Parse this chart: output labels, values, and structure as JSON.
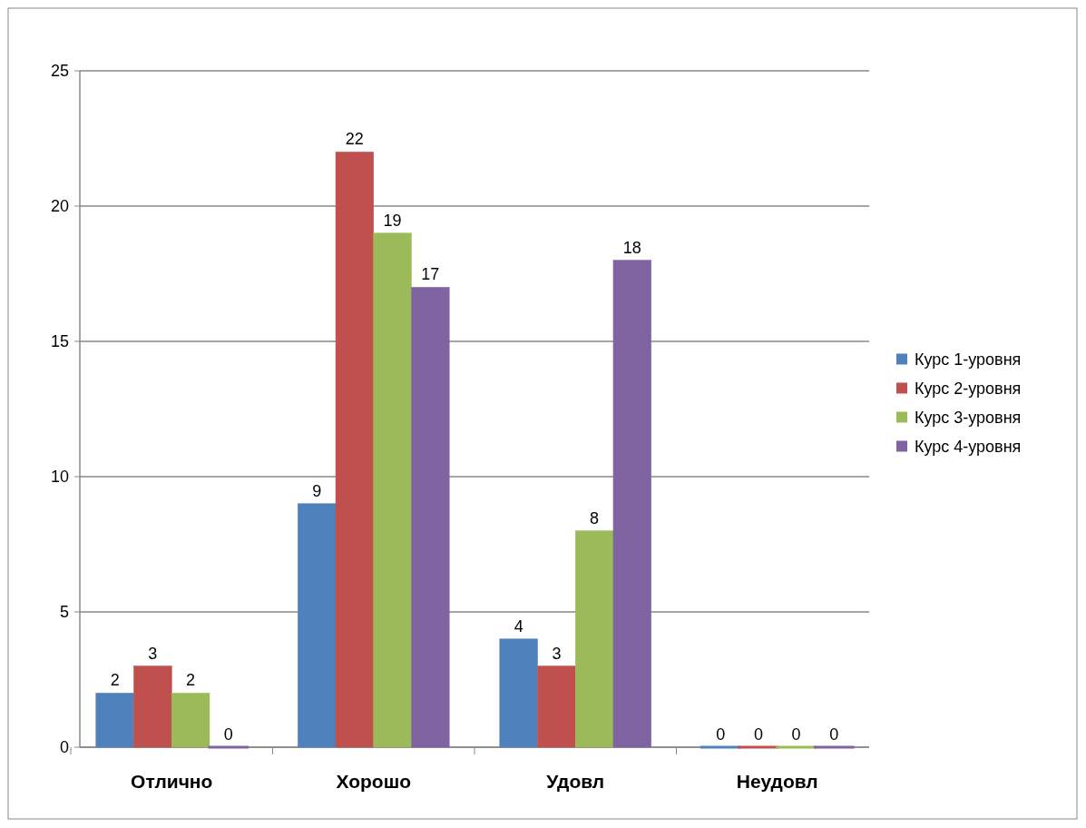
{
  "chart_data": {
    "type": "bar",
    "categories": [
      "Отлично",
      "Хорошо",
      "Удовл",
      "Неудовл"
    ],
    "series": [
      {
        "name": "Курс 1-уровня",
        "color": "#4f81bd",
        "values": [
          2,
          9,
          4,
          0
        ]
      },
      {
        "name": "Курс 2-уровня",
        "color": "#c0504d",
        "values": [
          3,
          22,
          3,
          0
        ]
      },
      {
        "name": "Курс 3-уровня",
        "color": "#9bbb59",
        "values": [
          2,
          19,
          8,
          0
        ]
      },
      {
        "name": "Курс 4-уровня",
        "color": "#8064a2",
        "values": [
          0,
          17,
          18,
          0
        ]
      }
    ],
    "ylim": [
      0,
      25
    ],
    "yticks": [
      0,
      5,
      10,
      15,
      20,
      25
    ],
    "grid": "y",
    "legend": "right",
    "data_labels": true
  }
}
